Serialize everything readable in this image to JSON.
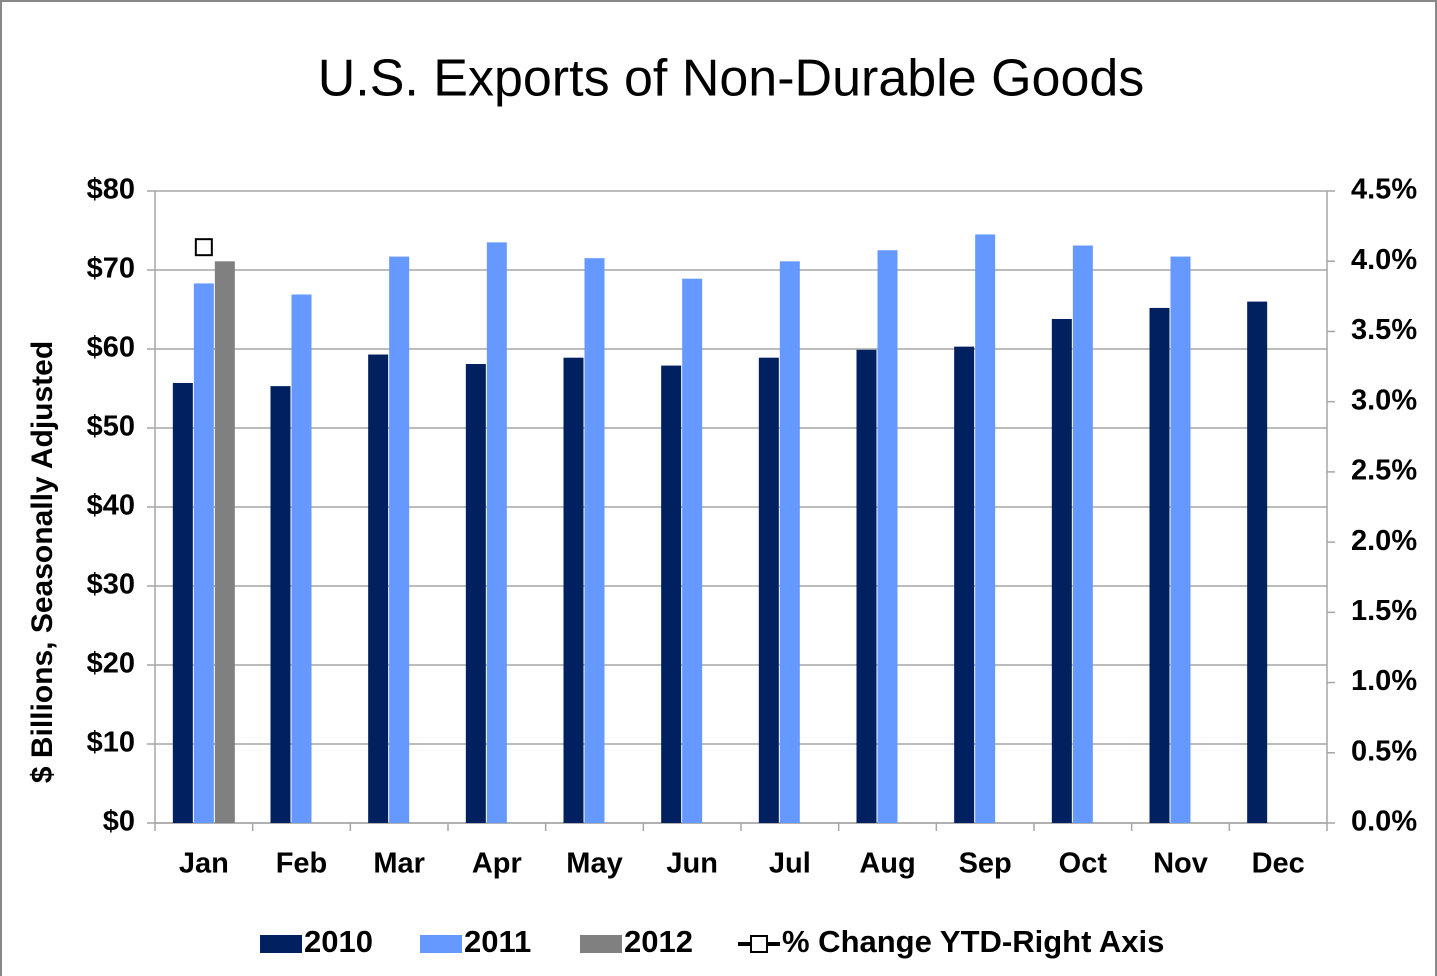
{
  "chart_data": {
    "type": "bar",
    "title": "U.S. Exports of Non-Durable Goods",
    "y_label": "$ Billions, Seasonally Adjusted",
    "categories": [
      "Jan",
      "Feb",
      "Mar",
      "Apr",
      "May",
      "Jun",
      "Jul",
      "Aug",
      "Sep",
      "Oct",
      "Nov",
      "Dec"
    ],
    "series": [
      {
        "name": "2010",
        "color": "#002060",
        "values": [
          55.7,
          55.3,
          59.3,
          58.1,
          58.9,
          57.9,
          58.9,
          59.9,
          60.3,
          63.8,
          65.2,
          66.0
        ]
      },
      {
        "name": "2011",
        "color": "#6699ff",
        "values": [
          68.3,
          66.9,
          71.7,
          73.5,
          71.5,
          68.9,
          71.1,
          72.5,
          74.5,
          73.1,
          71.7,
          null
        ]
      },
      {
        "name": "2012",
        "color": "#808080",
        "values": [
          71.1,
          null,
          null,
          null,
          null,
          null,
          null,
          null,
          null,
          null,
          null,
          null
        ]
      },
      {
        "name": "% Change YTD-Right Axis",
        "type": "line",
        "axis": "y2",
        "color": "#000000",
        "values": [
          4.1,
          null,
          null,
          null,
          null,
          null,
          null,
          null,
          null,
          null,
          null,
          null
        ]
      }
    ],
    "ylim": [
      0,
      80
    ],
    "yticks": [
      {
        "value": 0,
        "label": "$0"
      },
      {
        "value": 10,
        "label": "$10"
      },
      {
        "value": 20,
        "label": "$20"
      },
      {
        "value": 30,
        "label": "$30"
      },
      {
        "value": 40,
        "label": "$40"
      },
      {
        "value": 50,
        "label": "$50"
      },
      {
        "value": 60,
        "label": "$60"
      },
      {
        "value": 70,
        "label": "$70"
      },
      {
        "value": 80,
        "label": "$80"
      }
    ],
    "y2lim": [
      0,
      4.5
    ],
    "y2ticks": [
      {
        "value": 0,
        "label": "0.0%"
      },
      {
        "value": 0.5,
        "label": "0.5%"
      },
      {
        "value": 1,
        "label": "1.0%"
      },
      {
        "value": 1.5,
        "label": "1.5%"
      },
      {
        "value": 2,
        "label": "2.0%"
      },
      {
        "value": 2.5,
        "label": "2.5%"
      },
      {
        "value": 3,
        "label": "3.0%"
      },
      {
        "value": 3.5,
        "label": "3.5%"
      },
      {
        "value": 4,
        "label": "4.0%"
      },
      {
        "value": 4.5,
        "label": "4.5%"
      }
    ],
    "grid": true,
    "legend": "bottom"
  }
}
